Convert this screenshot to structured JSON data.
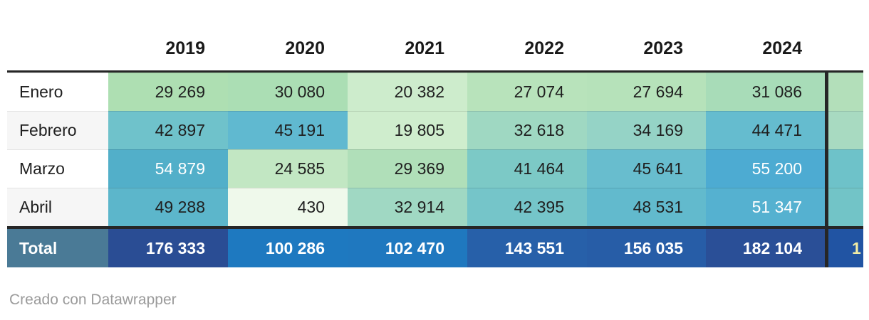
{
  "table": {
    "columns": [
      "2019",
      "2020",
      "2021",
      "2022",
      "2023",
      "2024"
    ],
    "rows": [
      {
        "label": "Enero",
        "label_bg": "#ffffff",
        "values": [
          "29 269",
          "30 080",
          "20 382",
          "27 074",
          "27 694",
          "31 086"
        ],
        "colors": [
          "#aedfb2",
          "#abdeb4",
          "#cdeccc",
          "#b8e3bb",
          "#b6e2ba",
          "#a8dcb8"
        ],
        "partial_color": "#b3dfba"
      },
      {
        "label": "Febrero",
        "label_bg": "#f6f6f6",
        "values": [
          "42 897",
          "45 191",
          "19 805",
          "32 618",
          "34 169",
          "44 471"
        ],
        "colors": [
          "#6fc2cb",
          "#60b9d0",
          "#cfedcd",
          "#9fd8c2",
          "#95d3c6",
          "#65bccf"
        ],
        "partial_color": "#a8dac1"
      },
      {
        "label": "Marzo",
        "label_bg": "#ffffff",
        "values": [
          "54 879",
          "24 585",
          "29 369",
          "41 464",
          "45 641",
          "55 200"
        ],
        "colors": [
          "#52afc9",
          "#c2e7c3",
          "#b0dfb9",
          "#7cc9c6",
          "#68bdce",
          "#4dabd2"
        ],
        "fg": [
          "#ffffff",
          null,
          null,
          null,
          null,
          "#ffffff"
        ],
        "partial_color": "#6ec2c9"
      },
      {
        "label": "Abril",
        "label_bg": "#f6f6f6",
        "values": [
          "49 288",
          "430",
          "32 914",
          "42 395",
          "48 531",
          "51 347"
        ],
        "colors": [
          "#5cb6cb",
          "#eff9eb",
          "#a0d8c3",
          "#75c5c9",
          "#62bacd",
          "#55b1d0"
        ],
        "fg": [
          null,
          null,
          null,
          null,
          null,
          "#ffffff"
        ],
        "partial_color": "#72c4c7"
      }
    ],
    "total": {
      "label": "Total",
      "label_bg": "#4a7a96",
      "values": [
        "176 333",
        "100 286",
        "102 470",
        "143 551",
        "156 035",
        "182 104"
      ],
      "colors": [
        "#2a4d94",
        "#1e79c0",
        "#1f78bf",
        "#2760a9",
        "#275da7",
        "#2a4f97"
      ],
      "partial_value": "1",
      "partial_color": "#2154a3",
      "partial_fg": "#f2eda5"
    }
  },
  "footer": {
    "credit": "Creado con Datawrapper"
  },
  "theme": {
    "rule_color": "#262626",
    "alt_row_bg": "#f6f6f6",
    "credit_color": "#9b9b9b"
  },
  "chart_data": {
    "type": "table",
    "title": "",
    "columns": [
      "",
      "2019",
      "2020",
      "2021",
      "2022",
      "2023",
      "2024"
    ],
    "rows": [
      [
        "Enero",
        29269,
        30080,
        20382,
        27074,
        27694,
        31086
      ],
      [
        "Febrero",
        42897,
        45191,
        19805,
        32618,
        34169,
        44471
      ],
      [
        "Marzo",
        54879,
        24585,
        29369,
        41464,
        45641,
        55200
      ],
      [
        "Abril",
        49288,
        430,
        32914,
        42395,
        48531,
        51347
      ],
      [
        "Total",
        176333,
        100286,
        102470,
        143551,
        156035,
        182104
      ]
    ]
  }
}
